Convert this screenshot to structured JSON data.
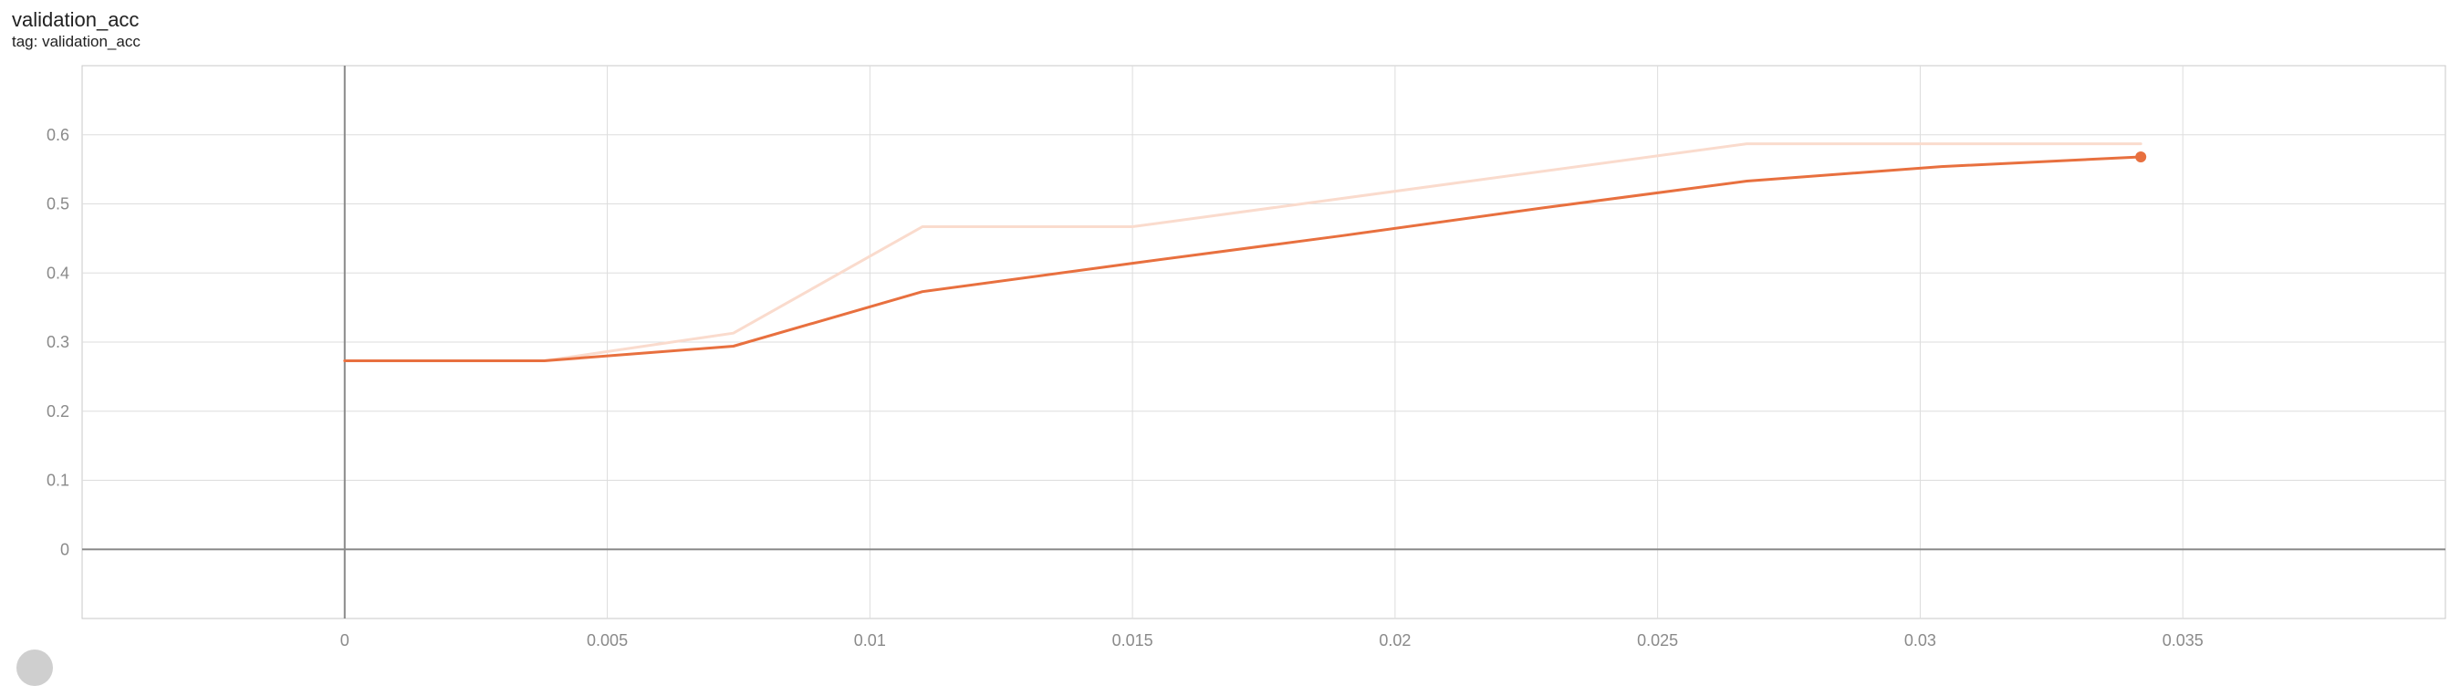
{
  "card": {
    "title": "validation_acc",
    "tag": "tag: validation_acc"
  },
  "colors": {
    "smoothed": "#e8703f",
    "raw": "#fadbcd",
    "grid": "#dddddd",
    "axis": "#8a8a8a",
    "frame": "#c8c8c8",
    "corner_button": "#cfcfcf"
  },
  "chart_data": {
    "type": "line",
    "title": "validation_acc",
    "xlabel": "",
    "ylabel": "",
    "xlim": [
      -0.005,
      0.04
    ],
    "ylim": [
      -0.1,
      0.7
    ],
    "grid": true,
    "x_ticks": [
      0,
      0.005,
      0.01,
      0.015,
      0.02,
      0.025,
      0.03,
      0.035
    ],
    "x_tick_labels": [
      "0",
      "0.005",
      "0.01",
      "0.015",
      "0.02",
      "0.025",
      "0.03",
      "0.035"
    ],
    "y_ticks": [
      0,
      0.1,
      0.2,
      0.3,
      0.4,
      0.5,
      0.6
    ],
    "y_tick_labels": [
      "0",
      "0.1",
      "0.2",
      "0.3",
      "0.4",
      "0.5",
      "0.6"
    ],
    "series": [
      {
        "role": "raw",
        "x": [
          0,
          0.0038,
          0.0074,
          0.011,
          0.015,
          0.0267,
          0.0342
        ],
        "y": [
          0.273,
          0.273,
          0.313,
          0.467,
          0.467,
          0.587,
          0.587
        ]
      },
      {
        "role": "smoothed",
        "x": [
          0,
          0.0038,
          0.0074,
          0.011,
          0.015,
          0.019,
          0.0228,
          0.0267,
          0.0304,
          0.0342
        ],
        "y": [
          0.273,
          0.273,
          0.294,
          0.373,
          0.414,
          0.454,
          0.494,
          0.533,
          0.554,
          0.568
        ]
      }
    ],
    "last_point_marker": true
  }
}
